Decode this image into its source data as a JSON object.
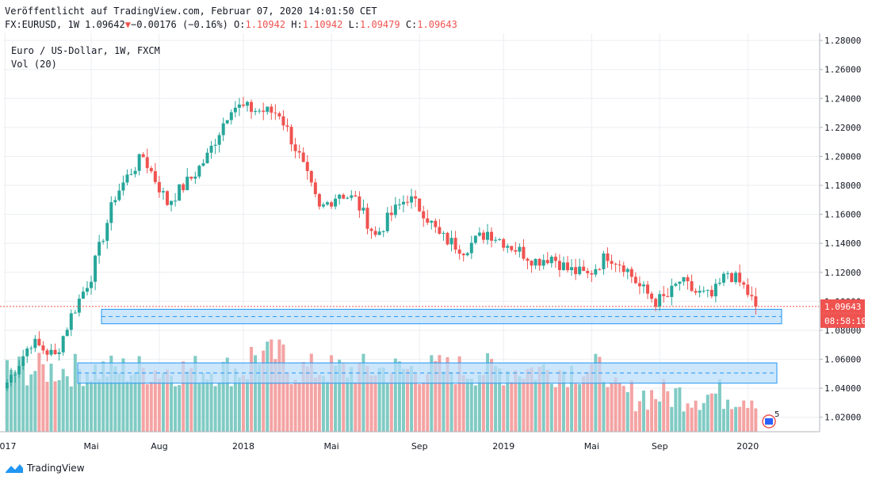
{
  "header": {
    "published": "Veröffentlicht auf TradingView.com, Februar 07, 2020 14:01:50 CET",
    "symbol": "FX:EURUSD, 1W",
    "last": "1.09642",
    "change": "−0.00176 (−0.16%)",
    "o_label": "O:",
    "o_value": "1.10942",
    "h_label": "H:",
    "h_value": "1.10942",
    "l_label": "L:",
    "l_value": "1.09479",
    "c_label": "C:",
    "c_value": "1.09643",
    "down_arrow": "▼"
  },
  "legend": {
    "instrument": "Euro / US-Dollar, 1W, FXCM",
    "volume": "Vol (20)"
  },
  "badges": {
    "price": "1.09643",
    "countdown": "08:58:10",
    "events_count": "5"
  },
  "footer": {
    "brand": "TradingView"
  },
  "colors": {
    "up": "#26a69a",
    "down": "#ef5350",
    "vol_up": "#80cbc4",
    "vol_down": "#f4a3a3",
    "zone_fill": "#bbdefb",
    "zone_stroke": "#2196f3"
  },
  "chart_data": {
    "type": "candlestick",
    "timeframe": "1W",
    "ylim": [
      1.01,
      1.285
    ],
    "y_ticks": [
      "1.02000",
      "1.04000",
      "1.06000",
      "1.08000",
      "1.10000",
      "1.12000",
      "1.14000",
      "1.16000",
      "1.18000",
      "1.20000",
      "1.22000",
      "1.24000",
      "1.26000",
      "1.28000"
    ],
    "x_ticks": [
      "2017",
      "Mai",
      "Aug",
      "2018",
      "Mai",
      "Sep",
      "2019",
      "Mai",
      "Sep",
      "2020"
    ],
    "last_price": 1.09643,
    "zones": [
      {
        "low": 1.0845,
        "high": 1.0945,
        "mid": 1.0895
      },
      {
        "low": 1.0435,
        "high": 1.0575,
        "mid": 1.0505
      }
    ],
    "anchors": [
      [
        0,
        1.044
      ],
      [
        6,
        1.072
      ],
      [
        12,
        1.062
      ],
      [
        16,
        1.09
      ],
      [
        21,
        1.118
      ],
      [
        27,
        1.173
      ],
      [
        31,
        1.19
      ],
      [
        34,
        1.2
      ],
      [
        40,
        1.168
      ],
      [
        46,
        1.185
      ],
      [
        50,
        1.2
      ],
      [
        56,
        1.235
      ],
      [
        62,
        1.232
      ],
      [
        68,
        1.23
      ],
      [
        73,
        1.2
      ],
      [
        78,
        1.163
      ],
      [
        83,
        1.175
      ],
      [
        87,
        1.17
      ],
      [
        92,
        1.145
      ],
      [
        96,
        1.16
      ],
      [
        100,
        1.172
      ],
      [
        104,
        1.162
      ],
      [
        108,
        1.145
      ],
      [
        114,
        1.136
      ],
      [
        120,
        1.148
      ],
      [
        126,
        1.138
      ],
      [
        132,
        1.128
      ],
      [
        136,
        1.131
      ],
      [
        140,
        1.122
      ],
      [
        145,
        1.118
      ],
      [
        150,
        1.132
      ],
      [
        154,
        1.125
      ],
      [
        158,
        1.11
      ],
      [
        162,
        1.1
      ],
      [
        165,
        1.103
      ],
      [
        168,
        1.114
      ],
      [
        172,
        1.106
      ],
      [
        176,
        1.103
      ],
      [
        180,
        1.12
      ],
      [
        184,
        1.11
      ],
      [
        187,
        1.0964
      ]
    ],
    "volume_ylim": [
      0,
      1.0
    ]
  }
}
